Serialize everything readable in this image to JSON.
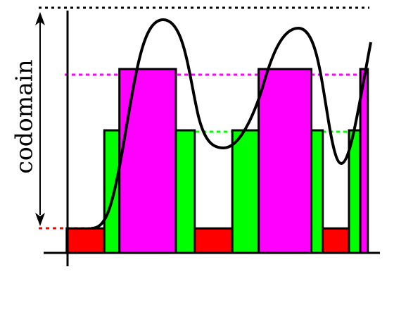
{
  "label": "codomain",
  "colors": {
    "low": "#ff0000",
    "mid": "#00ff00",
    "high": "#ff00ff",
    "stroke": "#000000"
  },
  "levels": {
    "low": 0.1,
    "mid": 0.5,
    "high": 0.75,
    "top": 1.0
  },
  "bars": [
    {
      "level": "low",
      "from": 0.08,
      "to": 0.18
    },
    {
      "level": "mid",
      "from": 0.18,
      "to": 0.22
    },
    {
      "level": "high",
      "from": 0.22,
      "to": 0.37
    },
    {
      "level": "mid",
      "from": 0.37,
      "to": 0.42
    },
    {
      "level": "low",
      "from": 0.42,
      "to": 0.52
    },
    {
      "level": "mid",
      "from": 0.52,
      "to": 0.59
    },
    {
      "level": "high",
      "from": 0.59,
      "to": 0.73
    },
    {
      "level": "mid",
      "from": 0.73,
      "to": 0.76
    },
    {
      "level": "low",
      "from": 0.76,
      "to": 0.83
    },
    {
      "level": "mid",
      "from": 0.83,
      "to": 0.86
    },
    {
      "level": "high",
      "from": 0.86,
      "to": 0.88
    }
  ]
}
